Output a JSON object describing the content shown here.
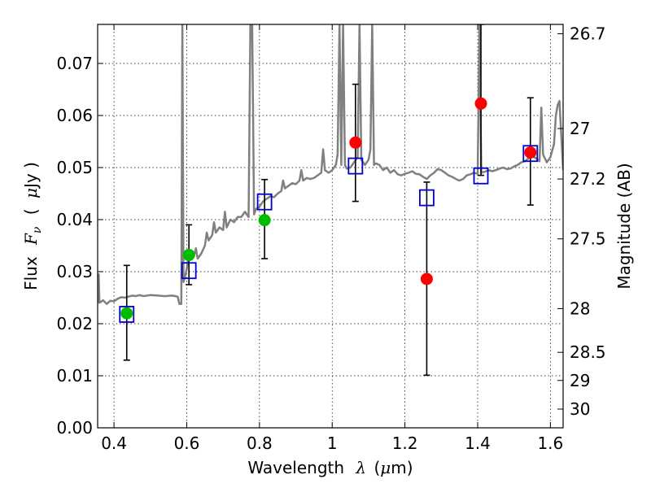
{
  "chart_data": {
    "type": "scatter",
    "title": "",
    "xlabel": "Wavelength",
    "xlabel_symbol": "λ",
    "xlabel_unit_open": "(",
    "xlabel_unit_mu": "μ",
    "xlabel_unit_rest": "m)",
    "ylabel": "Flux",
    "ylabel_symbol_main": "F",
    "ylabel_symbol_sub": "ν",
    "ylabel_unit_open": "(",
    "ylabel_unit_mu": "μ",
    "ylabel_unit_rest": "Jy )",
    "y2label": "Magnitude (AB)",
    "xlim": [
      0.355,
      1.635
    ],
    "ylim": [
      0.0,
      0.0775
    ],
    "grid": true,
    "xticks": [
      {
        "value": 0.4,
        "label": "0.4"
      },
      {
        "value": 0.6,
        "label": "0.6"
      },
      {
        "value": 0.8,
        "label": "0.8"
      },
      {
        "value": 1.0,
        "label": "1"
      },
      {
        "value": 1.2,
        "label": "1.2"
      },
      {
        "value": 1.4,
        "label": "1.4"
      },
      {
        "value": 1.6,
        "label": "1.6"
      }
    ],
    "yticks": [
      {
        "value": 0.0,
        "label": "0.00"
      },
      {
        "value": 0.01,
        "label": "0.01"
      },
      {
        "value": 0.02,
        "label": "0.02"
      },
      {
        "value": 0.03,
        "label": "0.03"
      },
      {
        "value": 0.04,
        "label": "0.04"
      },
      {
        "value": 0.05,
        "label": "0.05"
      },
      {
        "value": 0.06,
        "label": "0.06"
      },
      {
        "value": 0.07,
        "label": "0.07"
      }
    ],
    "y2ticks": [
      {
        "flux": 0.0757,
        "label": "26.7"
      },
      {
        "flux": 0.0575,
        "label": "27"
      },
      {
        "flux": 0.0478,
        "label": "27.2"
      },
      {
        "flux": 0.0363,
        "label": "27.5"
      },
      {
        "flux": 0.0229,
        "label": "28"
      },
      {
        "flux": 0.0145,
        "label": "28.5"
      },
      {
        "flux": 0.0091,
        "label": "29"
      },
      {
        "flux": 0.0036,
        "label": "30"
      }
    ],
    "colors": {
      "model": "#808080",
      "model_points": "#0000cc",
      "detections": "#00bb00",
      "photometry": "#ff0000",
      "errorbars": "#000000"
    },
    "series": [
      {
        "name": "model_spectrum",
        "kind": "line",
        "points": [
          [
            0.355,
            0.024
          ],
          [
            0.358,
            0.0295
          ],
          [
            0.36,
            0.024
          ],
          [
            0.37,
            0.0245
          ],
          [
            0.38,
            0.0238
          ],
          [
            0.39,
            0.0244
          ],
          [
            0.4,
            0.0243
          ],
          [
            0.41,
            0.0248
          ],
          [
            0.42,
            0.0251
          ],
          [
            0.43,
            0.025
          ],
          [
            0.44,
            0.0252
          ],
          [
            0.45,
            0.0254
          ],
          [
            0.46,
            0.0253
          ],
          [
            0.47,
            0.0255
          ],
          [
            0.48,
            0.0253
          ],
          [
            0.5,
            0.0255
          ],
          [
            0.52,
            0.0254
          ],
          [
            0.54,
            0.0253
          ],
          [
            0.56,
            0.0254
          ],
          [
            0.575,
            0.0252
          ],
          [
            0.58,
            0.0238
          ],
          [
            0.585,
            0.0238
          ],
          [
            0.588,
            0.0775
          ],
          [
            0.591,
            0.028
          ],
          [
            0.595,
            0.029
          ],
          [
            0.6,
            0.0305
          ],
          [
            0.605,
            0.033
          ],
          [
            0.61,
            0.0325
          ],
          [
            0.62,
            0.033
          ],
          [
            0.625,
            0.0345
          ],
          [
            0.63,
            0.0325
          ],
          [
            0.64,
            0.0335
          ],
          [
            0.65,
            0.035
          ],
          [
            0.655,
            0.0375
          ],
          [
            0.66,
            0.036
          ],
          [
            0.67,
            0.037
          ],
          [
            0.675,
            0.0395
          ],
          [
            0.68,
            0.0375
          ],
          [
            0.69,
            0.0385
          ],
          [
            0.7,
            0.038
          ],
          [
            0.705,
            0.0415
          ],
          [
            0.71,
            0.0385
          ],
          [
            0.72,
            0.04
          ],
          [
            0.73,
            0.0395
          ],
          [
            0.74,
            0.0405
          ],
          [
            0.75,
            0.0405
          ],
          [
            0.76,
            0.0415
          ],
          [
            0.77,
            0.0405
          ],
          [
            0.775,
            0.0775
          ],
          [
            0.78,
            0.0775
          ],
          [
            0.785,
            0.041
          ],
          [
            0.79,
            0.042
          ],
          [
            0.8,
            0.0425
          ],
          [
            0.81,
            0.0435
          ],
          [
            0.82,
            0.044
          ],
          [
            0.83,
            0.0445
          ],
          [
            0.84,
            0.0443
          ],
          [
            0.85,
            0.045
          ],
          [
            0.86,
            0.0455
          ],
          [
            0.865,
            0.0475
          ],
          [
            0.87,
            0.046
          ],
          [
            0.88,
            0.0465
          ],
          [
            0.89,
            0.047
          ],
          [
            0.9,
            0.0468
          ],
          [
            0.91,
            0.0475
          ],
          [
            0.915,
            0.0495
          ],
          [
            0.92,
            0.0475
          ],
          [
            0.93,
            0.048
          ],
          [
            0.94,
            0.0478
          ],
          [
            0.95,
            0.048
          ],
          [
            0.96,
            0.0485
          ],
          [
            0.97,
            0.049
          ],
          [
            0.975,
            0.0535
          ],
          [
            0.98,
            0.0495
          ],
          [
            0.99,
            0.049
          ],
          [
            1.0,
            0.0495
          ],
          [
            1.01,
            0.0505
          ],
          [
            1.015,
            0.0525
          ],
          [
            1.02,
            0.0775
          ],
          [
            1.025,
            0.0505
          ],
          [
            1.03,
            0.0775
          ],
          [
            1.035,
            0.0505
          ],
          [
            1.04,
            0.0498
          ],
          [
            1.05,
            0.05
          ],
          [
            1.06,
            0.051
          ],
          [
            1.07,
            0.052
          ],
          [
            1.075,
            0.0775
          ],
          [
            1.08,
            0.0515
          ],
          [
            1.09,
            0.0505
          ],
          [
            1.1,
            0.0515
          ],
          [
            1.105,
            0.0535
          ],
          [
            1.11,
            0.0775
          ],
          [
            1.115,
            0.0505
          ],
          [
            1.12,
            0.0508
          ],
          [
            1.13,
            0.0505
          ],
          [
            1.14,
            0.0495
          ],
          [
            1.15,
            0.05
          ],
          [
            1.16,
            0.049
          ],
          [
            1.17,
            0.0495
          ],
          [
            1.18,
            0.0487
          ],
          [
            1.19,
            0.0485
          ],
          [
            1.2,
            0.0488
          ],
          [
            1.21,
            0.049
          ],
          [
            1.22,
            0.0493
          ],
          [
            1.23,
            0.0488
          ],
          [
            1.24,
            0.0487
          ],
          [
            1.25,
            0.0482
          ],
          [
            1.26,
            0.0478
          ],
          [
            1.27,
            0.0485
          ],
          [
            1.28,
            0.049
          ],
          [
            1.29,
            0.0497
          ],
          [
            1.3,
            0.0495
          ],
          [
            1.31,
            0.049
          ],
          [
            1.32,
            0.0485
          ],
          [
            1.33,
            0.0482
          ],
          [
            1.34,
            0.0478
          ],
          [
            1.35,
            0.0475
          ],
          [
            1.36,
            0.0478
          ],
          [
            1.37,
            0.0485
          ],
          [
            1.38,
            0.0487
          ],
          [
            1.39,
            0.049
          ],
          [
            1.4,
            0.0488
          ],
          [
            1.405,
            0.0775
          ],
          [
            1.41,
            0.049
          ],
          [
            1.42,
            0.0492
          ],
          [
            1.43,
            0.0495
          ],
          [
            1.44,
            0.0493
          ],
          [
            1.45,
            0.0495
          ],
          [
            1.46,
            0.0498
          ],
          [
            1.47,
            0.05
          ],
          [
            1.48,
            0.0497
          ],
          [
            1.49,
            0.0498
          ],
          [
            1.5,
            0.0502
          ],
          [
            1.51,
            0.0505
          ],
          [
            1.52,
            0.051
          ],
          [
            1.53,
            0.0512
          ],
          [
            1.54,
            0.0518
          ],
          [
            1.55,
            0.0522
          ],
          [
            1.56,
            0.0518
          ],
          [
            1.57,
            0.0512
          ],
          [
            1.575,
            0.0615
          ],
          [
            1.58,
            0.0525
          ],
          [
            1.59,
            0.051
          ],
          [
            1.6,
            0.052
          ],
          [
            1.61,
            0.0545
          ],
          [
            1.615,
            0.06
          ],
          [
            1.62,
            0.062
          ],
          [
            1.625,
            0.0628
          ],
          [
            1.63,
            0.056
          ],
          [
            1.635,
            0.0495
          ]
        ]
      },
      {
        "name": "model_photometry",
        "kind": "square",
        "points": [
          {
            "x": 0.435,
            "y": 0.0218
          },
          {
            "x": 0.606,
            "y": 0.0302
          },
          {
            "x": 0.814,
            "y": 0.0434
          },
          {
            "x": 1.064,
            "y": 0.0503
          },
          {
            "x": 1.26,
            "y": 0.0442
          },
          {
            "x": 1.409,
            "y": 0.0484
          },
          {
            "x": 1.545,
            "y": 0.0527
          }
        ]
      },
      {
        "name": "detections",
        "kind": "circle",
        "points": [
          {
            "x": 0.435,
            "y": 0.022,
            "err_low": 0.013,
            "err_high": 0.0312
          },
          {
            "x": 0.606,
            "y": 0.0332,
            "err_low": 0.0275,
            "err_high": 0.039
          },
          {
            "x": 0.814,
            "y": 0.0399,
            "err_low": 0.0325,
            "err_high": 0.0477
          }
        ]
      },
      {
        "name": "photometry",
        "kind": "circle",
        "points": [
          {
            "x": 1.064,
            "y": 0.0548,
            "err_low": 0.0435,
            "err_high": 0.066
          },
          {
            "x": 1.26,
            "y": 0.0286,
            "err_low": 0.0101,
            "err_high": 0.0472
          },
          {
            "x": 1.409,
            "y": 0.0623,
            "err_low": 0.0485,
            "err_high": 0.0775
          },
          {
            "x": 1.545,
            "y": 0.0529,
            "err_low": 0.0428,
            "err_high": 0.0634
          }
        ]
      }
    ]
  }
}
